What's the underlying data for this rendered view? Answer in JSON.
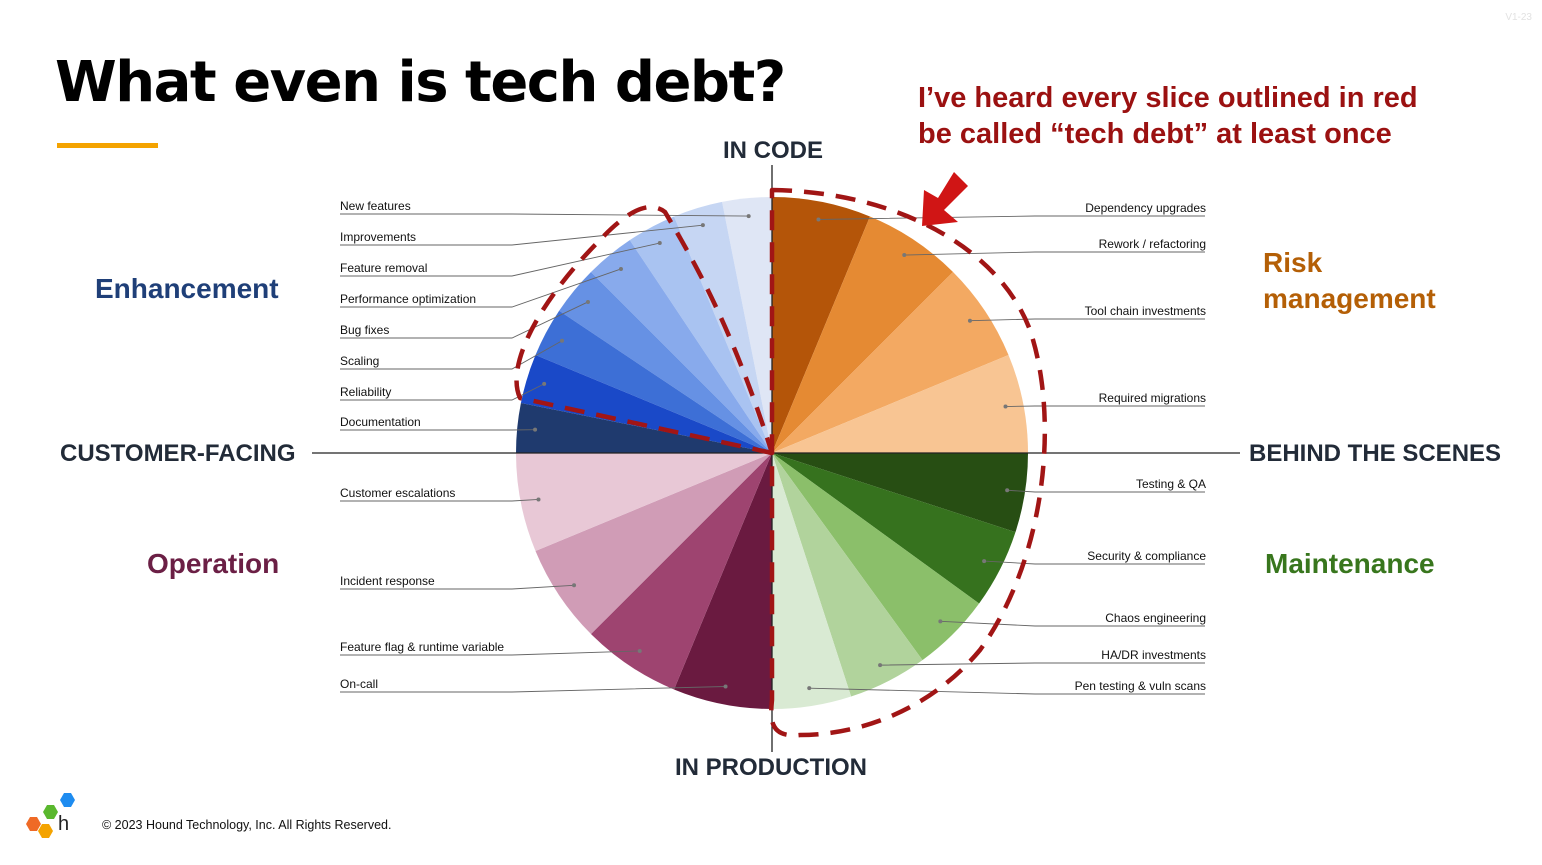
{
  "slide": {
    "title": "What even is tech debt?",
    "version": "V1-23",
    "callout_line1": "I’ve heard every slice outlined in red",
    "callout_line2": "be called “tech debt” at least once",
    "copyright": "© 2023 Hound Technology, Inc. All Rights Reserved."
  },
  "axes": {
    "top": "IN CODE",
    "bottom": "IN PRODUCTION",
    "left": "CUSTOMER-FACING",
    "right": "BEHIND THE SCENES"
  },
  "quadrants": {
    "enhancement": "Enhancement",
    "risk_line1": "Risk",
    "risk_line2": "management",
    "operation": "Operation",
    "maintenance": "Maintenance"
  },
  "colors": {
    "enhancement": "#1f3f78",
    "risk": "#b45f06",
    "operation": "#6b1f45",
    "maintenance": "#38761d",
    "callout": "#9b1111",
    "underline": "#f4a300"
  },
  "slices": {
    "enhancement": [
      {
        "label": "New features",
        "color": "#dfe6f5"
      },
      {
        "label": "Improvements",
        "color": "#c6d6f3"
      },
      {
        "label": "Feature removal",
        "color": "#a9c3f1"
      },
      {
        "label": "Performance optimization",
        "color": "#88aaec"
      },
      {
        "label": "Bug fixes",
        "color": "#6691e4"
      },
      {
        "label": "Scaling",
        "color": "#3d6fd6"
      },
      {
        "label": "Reliability",
        "color": "#1a49c8"
      },
      {
        "label": "Documentation",
        "color": "#1f3a6e"
      }
    ],
    "risk": [
      {
        "label": "Dependency upgrades",
        "color": "#b45509"
      },
      {
        "label": "Rework / refactoring",
        "color": "#e58a33"
      },
      {
        "label": "Tool chain investments",
        "color": "#f3a962"
      },
      {
        "label": "Required migrations",
        "color": "#f8c593"
      }
    ],
    "maintenance": [
      {
        "label": "Testing & QA",
        "color": "#274e13"
      },
      {
        "label": "Security & compliance",
        "color": "#36721e"
      },
      {
        "label": "Chaos engineering",
        "color": "#8bbf6a"
      },
      {
        "label": "HA/DR investments",
        "color": "#b1d39c"
      },
      {
        "label": "Pen testing & vuln scans",
        "color": "#d9ead3"
      }
    ],
    "operation": [
      {
        "label": "On-call",
        "color": "#6a1a40"
      },
      {
        "label": "Feature flag & runtime variable",
        "color": "#9e4470"
      },
      {
        "label": "Incident response",
        "color": "#d09cb6"
      },
      {
        "label": "Customer escalations",
        "color": "#e8c8d6"
      }
    ]
  }
}
